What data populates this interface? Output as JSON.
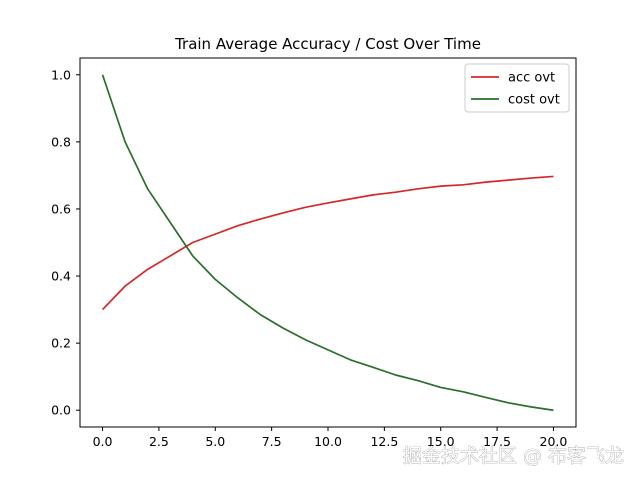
{
  "chart_data": {
    "type": "line",
    "title": "Train Average Accuracy / Cost Over Time",
    "xlabel": "",
    "ylabel": "",
    "xlim": [
      -1,
      21
    ],
    "ylim": [
      -0.05,
      1.05
    ],
    "x_ticks": [
      0.0,
      2.5,
      5.0,
      7.5,
      10.0,
      12.5,
      15.0,
      17.5,
      20.0
    ],
    "x_tick_labels": [
      "0.0",
      "2.5",
      "5.0",
      "7.5",
      "10.0",
      "12.5",
      "15.0",
      "17.5",
      "20.0"
    ],
    "y_ticks": [
      0.0,
      0.2,
      0.4,
      0.6,
      0.8,
      1.0
    ],
    "y_tick_labels": [
      "0.0",
      "0.2",
      "0.4",
      "0.6",
      "0.8",
      "1.0"
    ],
    "grid": false,
    "legend_position": "top-right",
    "x": [
      0,
      1,
      2,
      3,
      4,
      5,
      6,
      7,
      8,
      9,
      10,
      11,
      12,
      13,
      14,
      15,
      16,
      17,
      18,
      19,
      20
    ],
    "series": [
      {
        "name": "acc ovt",
        "color": "#d62728",
        "values": [
          0.3,
          0.37,
          0.42,
          0.46,
          0.5,
          0.525,
          0.55,
          0.57,
          0.588,
          0.605,
          0.618,
          0.63,
          0.642,
          0.65,
          0.66,
          0.668,
          0.672,
          0.68,
          0.686,
          0.692,
          0.697
        ]
      },
      {
        "name": "cost ovt",
        "color": "#2a6e2a",
        "values": [
          1.0,
          0.8,
          0.66,
          0.56,
          0.46,
          0.39,
          0.335,
          0.285,
          0.245,
          0.21,
          0.18,
          0.15,
          0.128,
          0.105,
          0.088,
          0.068,
          0.055,
          0.038,
          0.022,
          0.01,
          0.0
        ]
      }
    ]
  },
  "watermark": "掘金技术社区 @ 布客飞龙"
}
